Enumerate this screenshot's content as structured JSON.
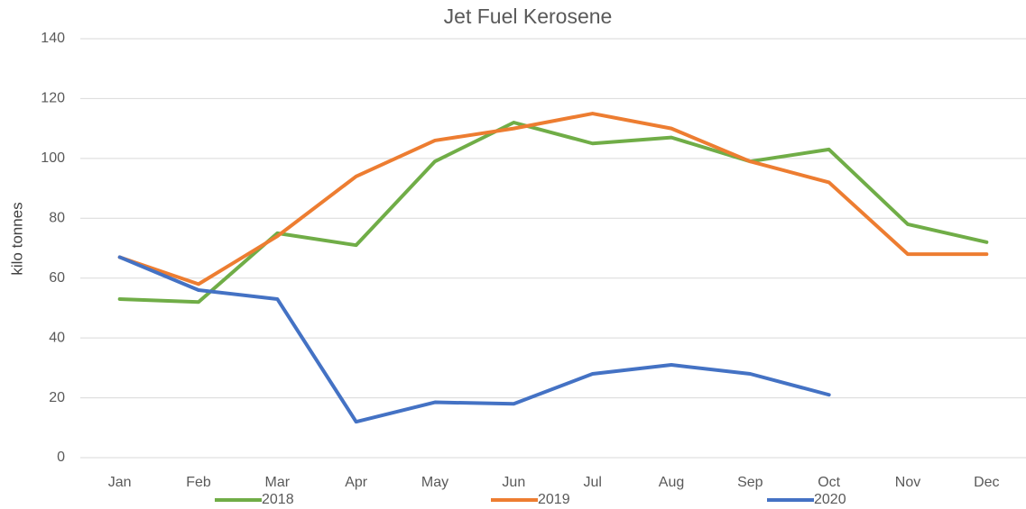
{
  "chart_data": {
    "type": "line",
    "title": "Jet Fuel Kerosene",
    "y_label": "kilo tonnes",
    "categories": [
      "Jan",
      "Feb",
      "Mar",
      "Apr",
      "May",
      "Jun",
      "Jul",
      "Aug",
      "Sep",
      "Oct",
      "Nov",
      "Dec"
    ],
    "series": [
      {
        "name": "2018",
        "color": "#70ad47",
        "values": [
          53,
          52,
          75,
          71,
          99,
          112,
          105,
          107,
          99,
          103,
          78,
          72
        ]
      },
      {
        "name": "2019",
        "color": "#ed7d31",
        "values": [
          67,
          58,
          74,
          94,
          106,
          110,
          115,
          110,
          99,
          92,
          68,
          68
        ]
      },
      {
        "name": "2020",
        "color": "#4472c4",
        "values": [
          67,
          56,
          53,
          12,
          18.5,
          18,
          28,
          31,
          28,
          21,
          null,
          null
        ]
      }
    ],
    "ylim": [
      0,
      140
    ],
    "yticks": [
      0,
      20,
      40,
      60,
      80,
      100,
      120,
      140
    ],
    "grid": true,
    "legend": "bottom"
  }
}
